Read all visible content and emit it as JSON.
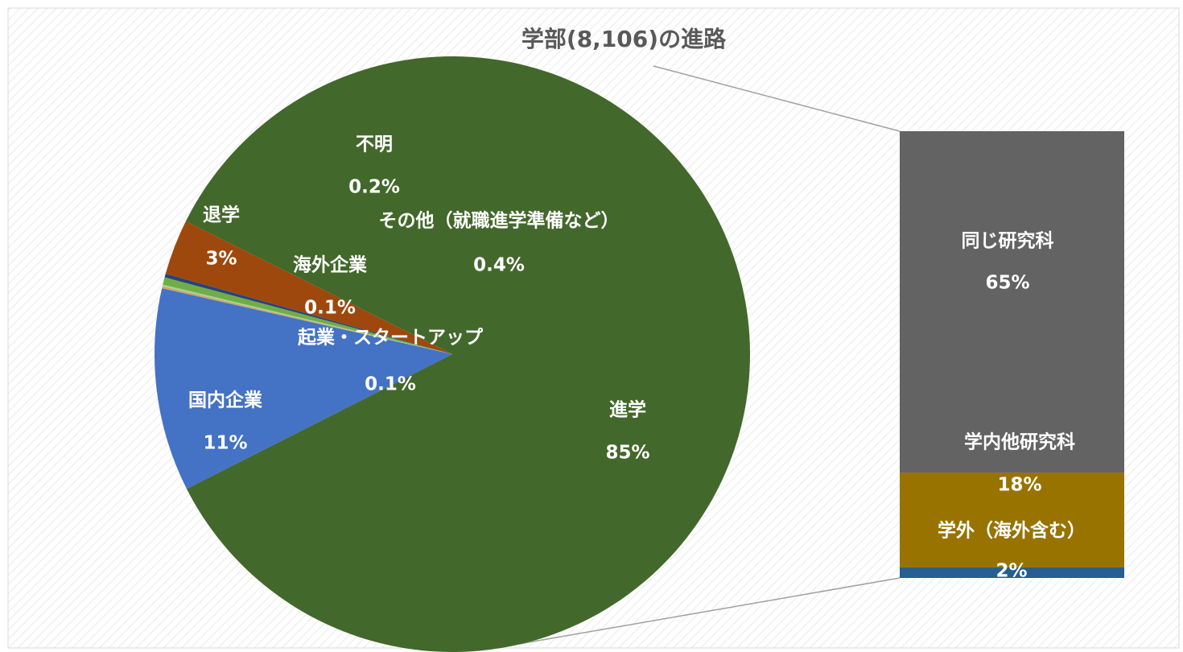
{
  "chart_data": [
    {
      "type": "pie",
      "title": "学部(8,106)の進路",
      "categories": [
        "進学",
        "国内企業",
        "海外企業",
        "起業・スタートアップ",
        "その他（就職進学準備など）",
        "不明",
        "退学"
      ],
      "values": [
        85,
        11,
        0.1,
        0.1,
        0.4,
        0.2,
        3
      ],
      "value_labels": [
        "85%",
        "11%",
        "0.1%",
        "0.1%",
        "0.4%",
        "0.2%",
        "3%"
      ],
      "colors": [
        "#43682b",
        "#4472c4",
        "#c9a273",
        "#a9d18e",
        "#70ad47",
        "#264478",
        "#9e480e"
      ]
    },
    {
      "type": "stacked-bar",
      "categories": [
        "同じ研究科",
        "学内他研究科",
        "学外（海外含む）"
      ],
      "values": [
        65,
        18,
        2
      ],
      "value_labels": [
        "65%",
        "18%",
        "2%"
      ],
      "colors": [
        "#636363",
        "#997300",
        "#255e91"
      ]
    }
  ]
}
